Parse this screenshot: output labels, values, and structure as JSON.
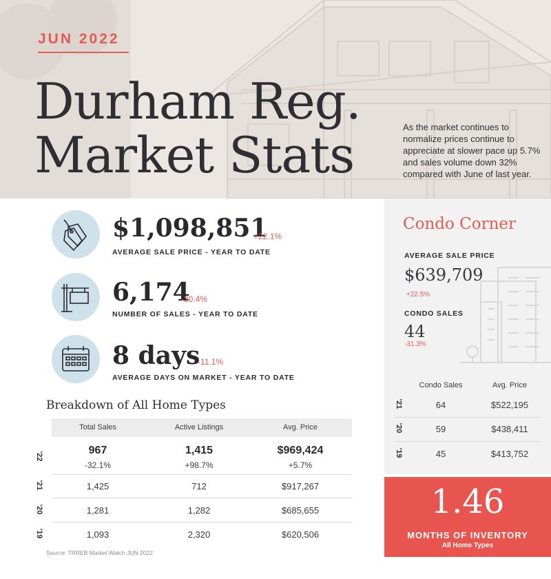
{
  "header": {
    "month": "JUN 2022",
    "title_line1": "Durham Reg.",
    "title_line2": "Market Stats",
    "intro": "As the market continues to normalize prices continue to appreciate at slower pace up 5.7% and sales volume down 32% compared with June of last year."
  },
  "stats": [
    {
      "icon": "price-tag-icon",
      "value": "$1,098,851",
      "change": "+22.1%",
      "label": "AVERAGE SALE PRICE - YEAR TO DATE"
    },
    {
      "icon": "sale-sign-icon",
      "value": "6,174",
      "change": "-30.4%",
      "label": "NUMBER OF SALES - YEAR TO DATE"
    },
    {
      "icon": "calendar-icon",
      "value": "8 days",
      "change": "-11.1%",
      "label": "AVERAGE DAYS ON MARKET - YEAR TO DATE"
    }
  ],
  "breakdown": {
    "title": "Breakdown of All Home Types",
    "columns": [
      "Total Sales",
      "Active Listings",
      "Avg. Price"
    ],
    "rows": [
      {
        "year": "'22",
        "values": [
          "967",
          "1,415",
          "$969,424"
        ],
        "changes": [
          "-32.1%",
          "+98.7%",
          "+5.7%"
        ]
      },
      {
        "year": "'21",
        "values": [
          "1,425",
          "712",
          "$917,267"
        ]
      },
      {
        "year": "'20",
        "values": [
          "1,281",
          "1,282",
          "$685,655"
        ]
      },
      {
        "year": "'19",
        "values": [
          "1,093",
          "2,320",
          "$620,506"
        ]
      }
    ],
    "source": "Source: TRREB Market Watch JUN 2022"
  },
  "condo": {
    "title": "Condo Corner",
    "avg_label": "AVERAGE SALE PRICE",
    "avg_value": "$639,709",
    "avg_change": "+22.5%",
    "sales_label": "CONDO SALES",
    "sales_value": "44",
    "sales_change": "-31.3%",
    "columns": [
      "Condo Sales",
      "Avg. Price"
    ],
    "rows": [
      {
        "year": "'21",
        "values": [
          "64",
          "$522,195"
        ]
      },
      {
        "year": "'20",
        "values": [
          "59",
          "$438,411"
        ]
      },
      {
        "year": "'19",
        "values": [
          "45",
          "$413,752"
        ]
      }
    ]
  },
  "inventory": {
    "value": "1.46",
    "label": "MONTHS OF INVENTORY",
    "sublabel": "All Home Types"
  },
  "colors": {
    "accent": "#e55a52",
    "icon_circle": "#cfe1ea",
    "inventory_bg": "#e8554f"
  }
}
